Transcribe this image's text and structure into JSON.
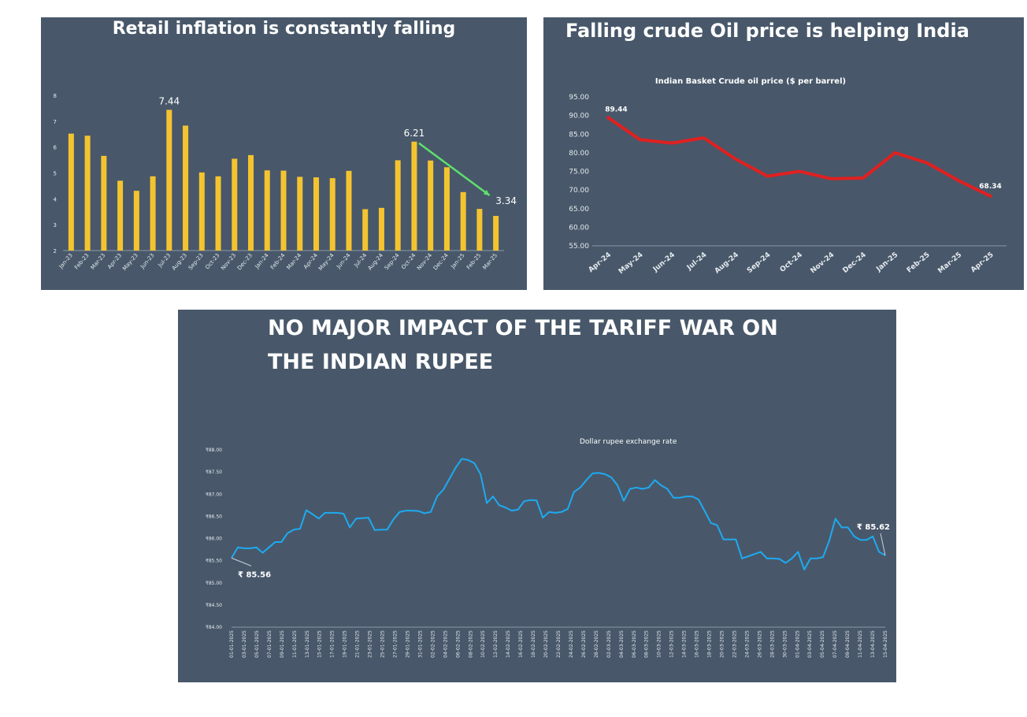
{
  "chart_data": [
    {
      "type": "bar",
      "title": "Retail inflation is constantly falling",
      "categories": [
        "Jan-23",
        "Feb-23",
        "Mar-23",
        "Apr-23",
        "May-23",
        "Jun-23",
        "Jul-23",
        "Aug-23",
        "Sep-23",
        "Oct-23",
        "Nov-23",
        "Dec-23",
        "Jan-24",
        "Feb-24",
        "Mar-24",
        "Apr-24",
        "May-24",
        "Jun-24",
        "Jul-24",
        "Aug-24",
        "Sep-24",
        "Oct-24",
        "Nov-24",
        "Dec-24",
        "Jan-25",
        "Feb-25",
        "Mar-25"
      ],
      "values": [
        6.52,
        6.44,
        5.66,
        4.7,
        4.31,
        4.87,
        7.44,
        6.83,
        5.02,
        4.87,
        5.55,
        5.69,
        5.1,
        5.09,
        4.85,
        4.83,
        4.8,
        5.08,
        3.6,
        3.65,
        5.49,
        6.21,
        5.48,
        5.22,
        4.26,
        3.61,
        3.34
      ],
      "ylim": [
        2,
        8
      ],
      "yticks": [
        "2",
        "3",
        "4",
        "5",
        "6",
        "7",
        "8"
      ],
      "bar_color": "#f4c430",
      "data_labels": [
        {
          "index": 6,
          "text": "7.44"
        },
        {
          "index": 21,
          "text": "6.21"
        },
        {
          "index": 26,
          "text": "3.34"
        }
      ],
      "trend_arrow": {
        "from_index": 21,
        "to_index": 26,
        "color": "#5ee06c"
      }
    },
    {
      "type": "line",
      "title": "Falling crude Oil price is helping India",
      "subtitle": "Indian Basket Crude oil price ($ per barrel)",
      "x": [
        "Apr-24",
        "May-24",
        "Jun-24",
        "Jul-24",
        "Aug-24",
        "Sep-24",
        "Oct-24",
        "Nov-24",
        "Dec-24",
        "Jan-25",
        "Feb-25",
        "Mar-25",
        "Apr-25"
      ],
      "values": [
        89.44,
        83.5,
        82.6,
        84.0,
        78.3,
        73.7,
        75.0,
        73.0,
        73.2,
        80.0,
        77.3,
        72.5,
        68.34
      ],
      "ylim": [
        55,
        95
      ],
      "yticks": [
        "55.00",
        "60.00",
        "65.00",
        "70.00",
        "75.00",
        "80.00",
        "85.00",
        "90.00",
        "95.00"
      ],
      "line_color": "#e02020",
      "data_labels": [
        {
          "index": 0,
          "text": "89.44"
        },
        {
          "index": 12,
          "text": "68.34"
        }
      ]
    },
    {
      "type": "line",
      "title": "NO MAJOR IMPACT OF THE TARIFF WAR ON THE INDIAN RUPEE",
      "title_lines": [
        "NO MAJOR IMPACT OF THE TARIFF WAR ON",
        "THE INDIAN RUPEE"
      ],
      "subtitle": "Dollar rupee exchange rate",
      "x_labels": [
        "01-01-2025",
        "03-01-2025",
        "05-01-2025",
        "07-01-2025",
        "09-01-2025",
        "11-01-2025",
        "13-01-2025",
        "15-01-2025",
        "17-01-2025",
        "19-01-2025",
        "21-01-2025",
        "23-01-2025",
        "25-01-2025",
        "27-01-2025",
        "29-01-2025",
        "31-01-2025",
        "02-02-2025",
        "04-02-2025",
        "06-02-2025",
        "08-02-2025",
        "10-02-2025",
        "12-02-2025",
        "14-02-2025",
        "16-02-2025",
        "18-02-2025",
        "20-02-2025",
        "22-02-2025",
        "24-02-2025",
        "26-02-2025",
        "28-02-2025",
        "02-03-2025",
        "04-03-2025",
        "06-03-2025",
        "08-03-2025",
        "10-03-2025",
        "12-03-2025",
        "14-03-2025",
        "16-03-2025",
        "18-03-2025",
        "20-03-2025",
        "22-03-2025",
        "24-03-2025",
        "26-03-2025",
        "28-03-2025",
        "30-03-2025",
        "01-04-2025",
        "03-04-2025",
        "05-04-2025",
        "07-04-2025",
        "09-04-2025",
        "11-04-2025",
        "13-04-2025",
        "15-04-2025"
      ],
      "values": [
        85.56,
        85.8,
        85.78,
        85.78,
        85.8,
        85.68,
        85.8,
        85.92,
        85.92,
        86.12,
        86.2,
        86.22,
        86.64,
        86.55,
        86.45,
        86.58,
        86.58,
        86.58,
        86.56,
        86.25,
        86.45,
        86.46,
        86.47,
        86.19,
        86.2,
        86.2,
        86.43,
        86.6,
        86.63,
        86.63,
        86.62,
        86.57,
        86.6,
        86.95,
        87.1,
        87.35,
        87.6,
        87.8,
        87.77,
        87.7,
        87.45,
        86.8,
        86.95,
        86.75,
        86.7,
        86.63,
        86.65,
        86.84,
        86.87,
        86.86,
        86.47,
        86.6,
        86.58,
        86.6,
        86.67,
        87.05,
        87.15,
        87.32,
        87.47,
        87.48,
        87.45,
        87.38,
        87.2,
        86.85,
        87.12,
        87.15,
        87.12,
        87.15,
        87.32,
        87.2,
        87.12,
        86.92,
        86.92,
        86.95,
        86.95,
        86.88,
        86.62,
        86.35,
        86.3,
        85.98,
        85.98,
        85.98,
        85.55,
        85.6,
        85.65,
        85.7,
        85.55,
        85.55,
        85.54,
        85.45,
        85.55,
        85.7,
        85.3,
        85.55,
        85.55,
        85.58,
        85.95,
        86.45,
        86.25,
        86.25,
        86.05,
        85.97,
        85.97,
        86.05,
        85.7,
        85.62
      ],
      "ylim": [
        84,
        88
      ],
      "yticks": [
        "₹84.00",
        "₹84.50",
        "₹85.00",
        "₹85.50",
        "₹86.00",
        "₹86.50",
        "₹87.00",
        "₹87.50",
        "₹88.00"
      ],
      "line_color": "#1eaaf1",
      "start_label": "₹ 85.56",
      "end_label": "₹ 85.62"
    }
  ]
}
